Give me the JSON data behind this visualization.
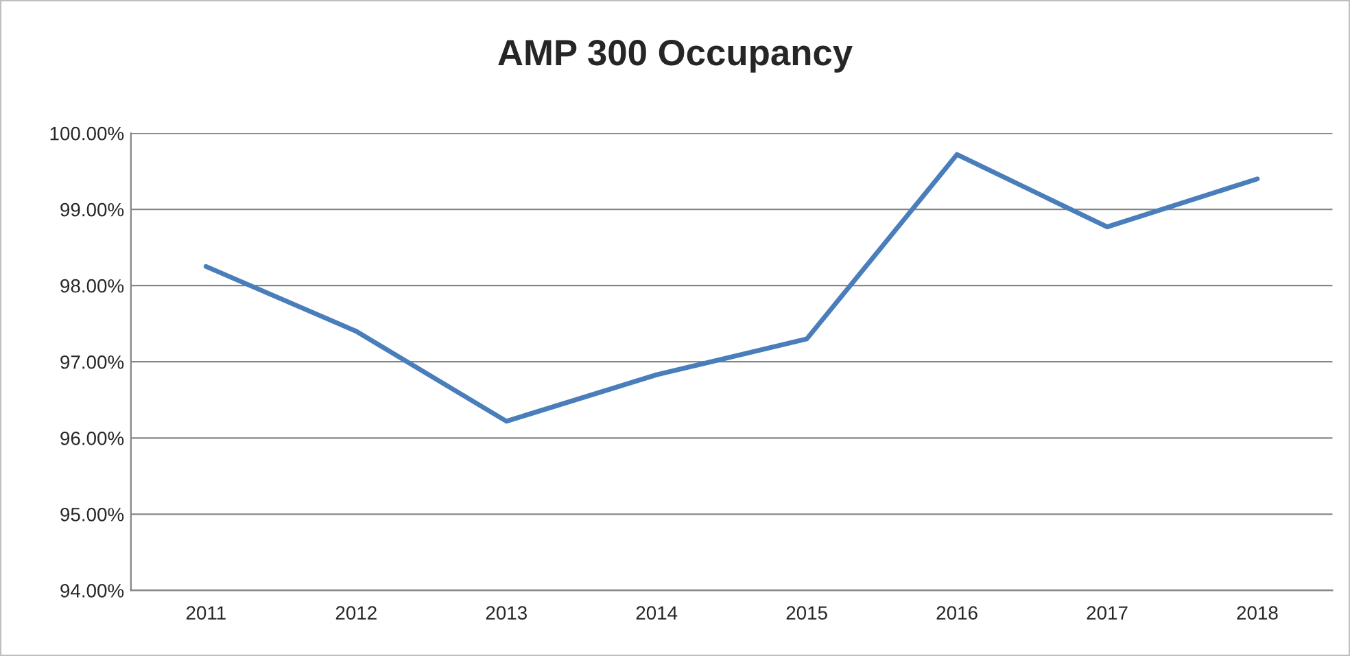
{
  "chart_data": {
    "type": "line",
    "title": "AMP 300 Occupancy",
    "categories": [
      "2011",
      "2012",
      "2013",
      "2014",
      "2015",
      "2016",
      "2017",
      "2018"
    ],
    "series": [
      {
        "color": "#4a7ebb",
        "values": [
          98.25,
          97.4,
          96.22,
          96.83,
          97.3,
          99.72,
          98.77,
          99.4
        ]
      }
    ],
    "ylim": [
      94,
      100
    ],
    "yticks": [
      {
        "value": 94,
        "label": "94.00%"
      },
      {
        "value": 95,
        "label": "95.00%"
      },
      {
        "value": 96,
        "label": "96.00%"
      },
      {
        "value": 97,
        "label": "97.00%"
      },
      {
        "value": 98,
        "label": "98.00%"
      },
      {
        "value": 99,
        "label": "99.00%"
      },
      {
        "value": 100,
        "label": "100.00%"
      }
    ],
    "grid": "y",
    "marker": "none",
    "line_style": "solid"
  }
}
